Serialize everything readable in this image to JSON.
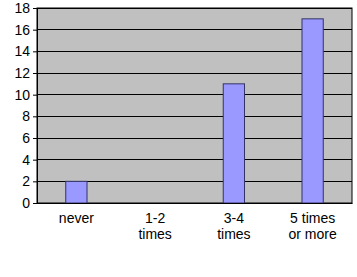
{
  "chart_data": {
    "type": "bar",
    "categories": [
      "never",
      "1-2 times",
      "3-4 times",
      "5 times or more"
    ],
    "values": [
      2,
      0,
      11,
      17
    ],
    "color": "#9999ff",
    "ylim": [
      0,
      18
    ],
    "yticks": [
      0,
      2,
      4,
      6,
      8,
      10,
      12,
      14,
      16,
      18
    ],
    "grid": true
  }
}
